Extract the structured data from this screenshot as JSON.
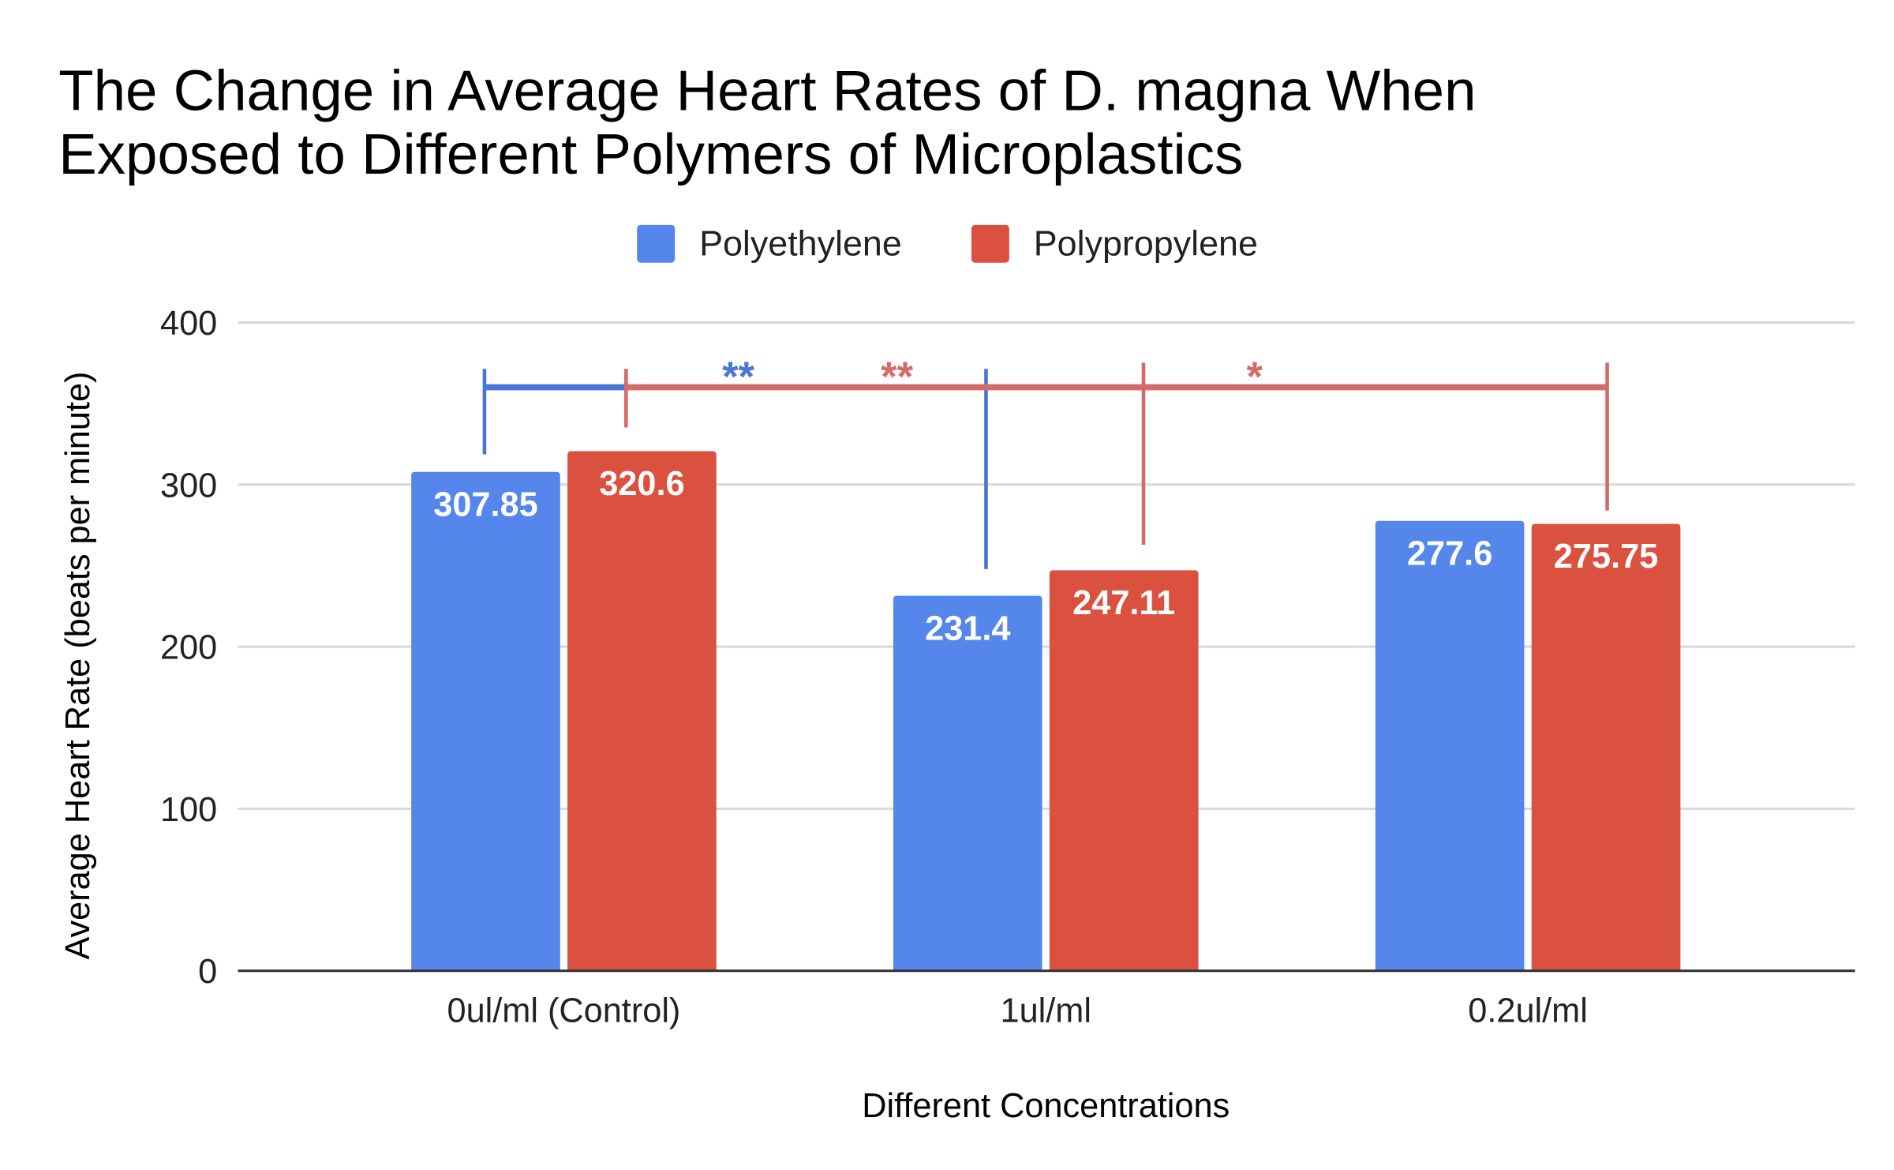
{
  "chart_data": {
    "type": "bar",
    "title_lines": [
      "The Change in Average Heart Rates of D. magna When",
      "Exposed to Different Polymers of Microplastics"
    ],
    "xlabel": "Different Concentrations",
    "ylabel": "Average Heart Rate (beats per minute)",
    "categories": [
      "0ul/ml (Control)",
      "1ul/ml",
      "0.2ul/ml"
    ],
    "ylim": [
      0,
      400
    ],
    "yticks": [
      "0",
      "100",
      "200",
      "300",
      "400"
    ],
    "grid": true,
    "legend_position": "top",
    "series": [
      {
        "name": "Polyethylene",
        "color": "#5586EB",
        "values": [
          307.85,
          231.4,
          277.6
        ],
        "labels": [
          "307.85",
          "231.4",
          "277.6"
        ]
      },
      {
        "name": "Polypropylene",
        "color": "#DB5140",
        "values": [
          320.6,
          247.11,
          275.75
        ],
        "labels": [
          "320.6",
          "247.11",
          "275.75"
        ]
      }
    ],
    "annotations": [
      {
        "text": "**",
        "color": "#4A76D6",
        "comparison": [
          "0ul/ml (Control)",
          "1ul/ml"
        ],
        "series": "Polyethylene"
      },
      {
        "text": "**",
        "color": "#D46B6B",
        "comparison": [
          "0ul/ml (Control)",
          "1ul/ml"
        ],
        "series": "Polypropylene"
      },
      {
        "text": "*",
        "color": "#D46B6B",
        "comparison": [
          "0ul/ml (Control)",
          "0.2ul/ml"
        ],
        "series": "Polypropylene"
      }
    ]
  }
}
